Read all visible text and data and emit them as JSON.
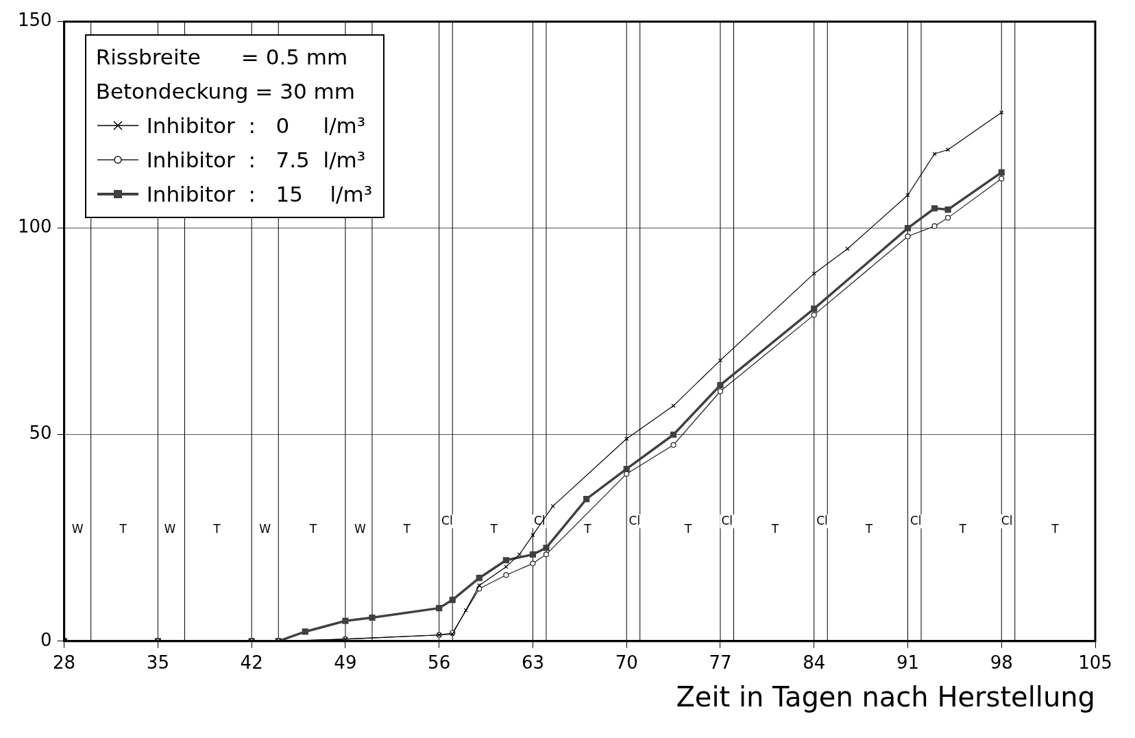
{
  "chart_data": {
    "type": "line",
    "xlabel": "Zeit in Tagen nach Herstellung",
    "legend_title": "Rissbreite      = 0.5 mm\nBetondeckung = 30 mm",
    "legend": "top left",
    "grid": "y",
    "xlim": [
      28,
      105
    ],
    "xticks": [
      28,
      35,
      42,
      49,
      56,
      63,
      70,
      77,
      84,
      91,
      98,
      105
    ],
    "ylim": [
      0,
      150
    ],
    "yticks": [
      0,
      50,
      100,
      150
    ],
    "series": [
      {
        "name": "Inhibitor  :   0     l/m³",
        "color": "#000000",
        "marker": "cross",
        "x": [
          28,
          35,
          42,
          44,
          49,
          56,
          57,
          58,
          59,
          61,
          62,
          63,
          64.5,
          70,
          73.5,
          77,
          84,
          86.5,
          91,
          93,
          94,
          98
        ],
        "values": [
          0,
          0,
          0,
          0,
          0.5,
          1.5,
          1.7,
          7.5,
          13.5,
          18,
          21,
          25.7,
          32.7,
          49,
          57,
          68,
          89,
          95,
          108,
          118,
          119,
          128
        ]
      },
      {
        "name": "Inhibitor  :   7.5  l/m³",
        "color": "#202020",
        "marker": "circle",
        "x": [
          28,
          35,
          42,
          44,
          49,
          56,
          57,
          59,
          61,
          63,
          64,
          70,
          73.5,
          77,
          84,
          91,
          93,
          94,
          98
        ],
        "values": [
          0,
          0,
          0,
          0,
          0.5,
          1.5,
          2,
          12.7,
          16,
          18.8,
          21,
          40.5,
          47.5,
          60.5,
          79,
          98,
          100.5,
          102.5,
          112
        ]
      },
      {
        "name": "Inhibitor  :   15    l/m³",
        "color": "#404040",
        "marker": "square",
        "x": [
          28,
          35,
          42,
          44,
          46,
          49,
          51,
          56,
          57,
          59,
          61,
          63,
          64,
          67,
          70,
          73.5,
          77,
          84,
          91,
          93,
          94,
          98
        ],
        "values": [
          0,
          0,
          0,
          0,
          2.3,
          4.9,
          5.7,
          8,
          10,
          15.3,
          19.6,
          21,
          22.6,
          34.4,
          41.7,
          50,
          62,
          80.5,
          100,
          104.8,
          104.5,
          113.5
        ]
      }
    ],
    "ref_lines": [
      {
        "axis": "x",
        "value": 30
      },
      {
        "axis": "x",
        "value": 35
      },
      {
        "axis": "x",
        "value": 37
      },
      {
        "axis": "x",
        "value": 42
      },
      {
        "axis": "x",
        "value": 44
      },
      {
        "axis": "x",
        "value": 49
      },
      {
        "axis": "x",
        "value": 51
      },
      {
        "axis": "x",
        "value": 56
      },
      {
        "axis": "x",
        "value": 57
      },
      {
        "axis": "x",
        "value": 63
      },
      {
        "axis": "x",
        "value": 64
      },
      {
        "axis": "x",
        "value": 70
      },
      {
        "axis": "x",
        "value": 71
      },
      {
        "axis": "x",
        "value": 77
      },
      {
        "axis": "x",
        "value": 78
      },
      {
        "axis": "x",
        "value": 84
      },
      {
        "axis": "x",
        "value": 85
      },
      {
        "axis": "x",
        "value": 91
      },
      {
        "axis": "x",
        "value": 92
      },
      {
        "axis": "x",
        "value": 98
      },
      {
        "axis": "x",
        "value": 99
      }
    ],
    "annotations": [
      {
        "text": "W",
        "x": 29,
        "y": 27
      },
      {
        "text": "T",
        "x": 32.4,
        "y": 27
      },
      {
        "text": "W",
        "x": 35.9,
        "y": 27
      },
      {
        "text": "T",
        "x": 39.4,
        "y": 27
      },
      {
        "text": "W",
        "x": 43,
        "y": 27
      },
      {
        "text": "T",
        "x": 46.6,
        "y": 27
      },
      {
        "text": "W",
        "x": 50.1,
        "y": 27
      },
      {
        "text": "T",
        "x": 53.6,
        "y": 27
      },
      {
        "text": "Cl",
        "x": 56.6,
        "y": 29
      },
      {
        "text": "T",
        "x": 60.1,
        "y": 27
      },
      {
        "text": "Cl",
        "x": 63.5,
        "y": 29
      },
      {
        "text": "T",
        "x": 67.1,
        "y": 27
      },
      {
        "text": "Cl",
        "x": 70.6,
        "y": 29
      },
      {
        "text": "T",
        "x": 74.6,
        "y": 27
      },
      {
        "text": "Cl",
        "x": 77.5,
        "y": 29
      },
      {
        "text": "T",
        "x": 81.1,
        "y": 27
      },
      {
        "text": "Cl",
        "x": 84.6,
        "y": 29
      },
      {
        "text": "T",
        "x": 88.1,
        "y": 27
      },
      {
        "text": "Cl",
        "x": 91.6,
        "y": 29
      },
      {
        "text": "T",
        "x": 95.1,
        "y": 27
      },
      {
        "text": "Cl",
        "x": 98.4,
        "y": 29
      },
      {
        "text": "T",
        "x": 102,
        "y": 27
      }
    ]
  }
}
